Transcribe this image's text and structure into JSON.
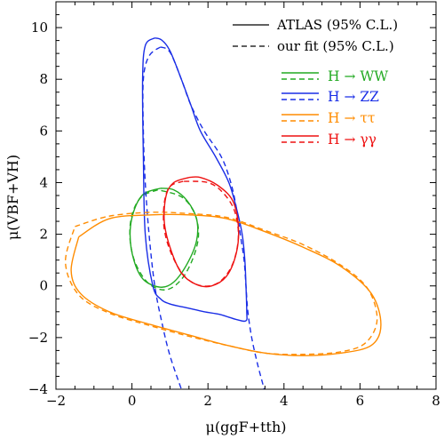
{
  "chart_data": {
    "type": "line",
    "xlabel": "μ(ggF+tth)",
    "ylabel": "μ(VBF+VH)",
    "xlim": [
      -2,
      8
    ],
    "ylim": [
      -4,
      11
    ],
    "x_ticks": [
      -2,
      0,
      2,
      4,
      6,
      8
    ],
    "y_ticks": [
      -4,
      -2,
      0,
      2,
      4,
      6,
      8,
      10
    ],
    "x_tick_labels": [
      "−2",
      "0",
      "2",
      "4",
      "6",
      "8"
    ],
    "y_tick_labels": [
      "−4",
      "−2",
      "0",
      "2",
      "4",
      "6",
      "8",
      "10"
    ],
    "grid": false,
    "legend_placement": "top-right",
    "style_legend": [
      {
        "label": "ATLAS (95% C.L.)",
        "dash": "solid"
      },
      {
        "label": "our fit (95% C.L.)",
        "dash": "dashed"
      }
    ],
    "series": [
      {
        "name": "H → WW",
        "color": "#22aa22",
        "atlas": [
          [
            0.75,
            3.78
          ],
          [
            0.3,
            3.55
          ],
          [
            0.05,
            2.9
          ],
          [
            -0.05,
            2.0
          ],
          [
            0.05,
            1.0
          ],
          [
            0.3,
            0.25
          ],
          [
            0.75,
            -0.05
          ],
          [
            1.1,
            0.15
          ],
          [
            1.45,
            0.85
          ],
          [
            1.7,
            1.75
          ],
          [
            1.7,
            2.6
          ],
          [
            1.45,
            3.3
          ],
          [
            1.1,
            3.72
          ],
          [
            0.75,
            3.78
          ]
        ],
        "fit": [
          [
            0.68,
            3.72
          ],
          [
            0.25,
            3.45
          ],
          [
            0.0,
            2.75
          ],
          [
            -0.05,
            1.8
          ],
          [
            0.1,
            0.85
          ],
          [
            0.45,
            0.08
          ],
          [
            0.9,
            -0.15
          ],
          [
            1.3,
            0.25
          ],
          [
            1.6,
            1.05
          ],
          [
            1.75,
            1.95
          ],
          [
            1.65,
            2.8
          ],
          [
            1.3,
            3.45
          ],
          [
            0.68,
            3.72
          ]
        ]
      },
      {
        "name": "H → ZZ",
        "color": "#1a2ee6",
        "atlas": [
          [
            0.6,
            9.6
          ],
          [
            0.78,
            9.52
          ],
          [
            1.0,
            9.1
          ],
          [
            1.3,
            8.0
          ],
          [
            1.55,
            7.0
          ],
          [
            1.8,
            6.0
          ],
          [
            2.2,
            5.0
          ],
          [
            2.55,
            4.0
          ],
          [
            2.75,
            3.0
          ],
          [
            2.9,
            2.0
          ],
          [
            2.97,
            1.0
          ],
          [
            3.0,
            0.0
          ],
          [
            3.02,
            -1.0
          ],
          [
            3.0,
            -1.35
          ],
          [
            2.75,
            -1.3
          ],
          [
            2.3,
            -1.1
          ],
          [
            1.9,
            -1.0
          ],
          [
            1.45,
            -0.85
          ],
          [
            1.0,
            -0.7
          ],
          [
            0.75,
            -0.5
          ],
          [
            0.55,
            0.0
          ],
          [
            0.35,
            2.0
          ],
          [
            0.3,
            5.0
          ],
          [
            0.28,
            8.0
          ],
          [
            0.35,
            9.3
          ],
          [
            0.6,
            9.6
          ]
        ],
        "fit": [
          [
            0.75,
            9.25
          ],
          [
            1.0,
            9.05
          ],
          [
            1.3,
            8.0
          ],
          [
            1.55,
            7.0
          ],
          [
            1.9,
            6.0
          ],
          [
            2.35,
            5.0
          ],
          [
            2.6,
            4.0
          ],
          [
            2.75,
            3.0
          ],
          [
            2.85,
            2.0
          ],
          [
            2.95,
            1.0
          ],
          [
            3.0,
            0.0
          ],
          [
            3.05,
            -1.0
          ],
          [
            3.15,
            -2.0
          ],
          [
            3.3,
            -3.0
          ],
          [
            3.48,
            -4.0
          ]
        ],
        "fit_left": [
          [
            0.75,
            9.25
          ],
          [
            0.45,
            8.9
          ],
          [
            0.3,
            8.0
          ],
          [
            0.3,
            6.0
          ],
          [
            0.35,
            4.0
          ],
          [
            0.45,
            2.0
          ],
          [
            0.6,
            0.0
          ],
          [
            0.8,
            -1.5
          ],
          [
            1.0,
            -2.7
          ],
          [
            1.3,
            -4.0
          ]
        ]
      },
      {
        "name": "H → ττ",
        "color": "#ff8c00",
        "atlas": [
          [
            -1.4,
            1.9
          ],
          [
            -0.6,
            2.6
          ],
          [
            0.5,
            2.75
          ],
          [
            1.5,
            2.75
          ],
          [
            2.5,
            2.6
          ],
          [
            3.5,
            2.1
          ],
          [
            4.5,
            1.5
          ],
          [
            5.5,
            0.75
          ],
          [
            6.3,
            -0.3
          ],
          [
            6.55,
            -1.5
          ],
          [
            6.3,
            -2.3
          ],
          [
            5.5,
            -2.6
          ],
          [
            4.5,
            -2.7
          ],
          [
            3.5,
            -2.6
          ],
          [
            2.5,
            -2.3
          ],
          [
            1.5,
            -1.9
          ],
          [
            0.5,
            -1.5
          ],
          [
            -0.6,
            -1.0
          ],
          [
            -1.35,
            -0.3
          ],
          [
            -1.6,
            0.6
          ],
          [
            -1.4,
            1.9
          ]
        ],
        "fit": [
          [
            -1.5,
            2.3
          ],
          [
            -0.6,
            2.7
          ],
          [
            0.5,
            2.85
          ],
          [
            1.5,
            2.8
          ],
          [
            2.5,
            2.65
          ],
          [
            3.5,
            2.15
          ],
          [
            4.5,
            1.6
          ],
          [
            5.5,
            0.8
          ],
          [
            6.2,
            -0.1
          ],
          [
            6.45,
            -1.3
          ],
          [
            6.15,
            -2.2
          ],
          [
            5.5,
            -2.55
          ],
          [
            4.5,
            -2.65
          ],
          [
            3.5,
            -2.6
          ],
          [
            2.5,
            -2.3
          ],
          [
            1.5,
            -1.95
          ],
          [
            0.5,
            -1.55
          ],
          [
            -0.6,
            -1.05
          ],
          [
            -1.4,
            -0.35
          ],
          [
            -1.75,
            0.9
          ],
          [
            -1.5,
            2.3
          ]
        ]
      },
      {
        "name": "H → γγ",
        "color": "#ee1111",
        "atlas": [
          [
            1.5,
            4.2
          ],
          [
            1.1,
            4.0
          ],
          [
            0.9,
            3.5
          ],
          [
            0.85,
            2.5
          ],
          [
            1.0,
            1.5
          ],
          [
            1.3,
            0.5
          ],
          [
            1.7,
            0.05
          ],
          [
            2.1,
            0.0
          ],
          [
            2.5,
            0.4
          ],
          [
            2.75,
            1.3
          ],
          [
            2.8,
            2.3
          ],
          [
            2.65,
            3.3
          ],
          [
            2.25,
            3.9
          ],
          [
            1.8,
            4.2
          ],
          [
            1.5,
            4.2
          ]
        ],
        "fit": [
          [
            1.35,
            4.05
          ],
          [
            1.0,
            3.85
          ],
          [
            0.85,
            3.2
          ],
          [
            0.85,
            2.2
          ],
          [
            1.05,
            1.2
          ],
          [
            1.4,
            0.35
          ],
          [
            1.85,
            0.0
          ],
          [
            2.3,
            0.15
          ],
          [
            2.65,
            0.85
          ],
          [
            2.8,
            1.9
          ],
          [
            2.7,
            2.9
          ],
          [
            2.4,
            3.6
          ],
          [
            2.0,
            4.0
          ],
          [
            1.35,
            4.05
          ]
        ]
      }
    ]
  }
}
